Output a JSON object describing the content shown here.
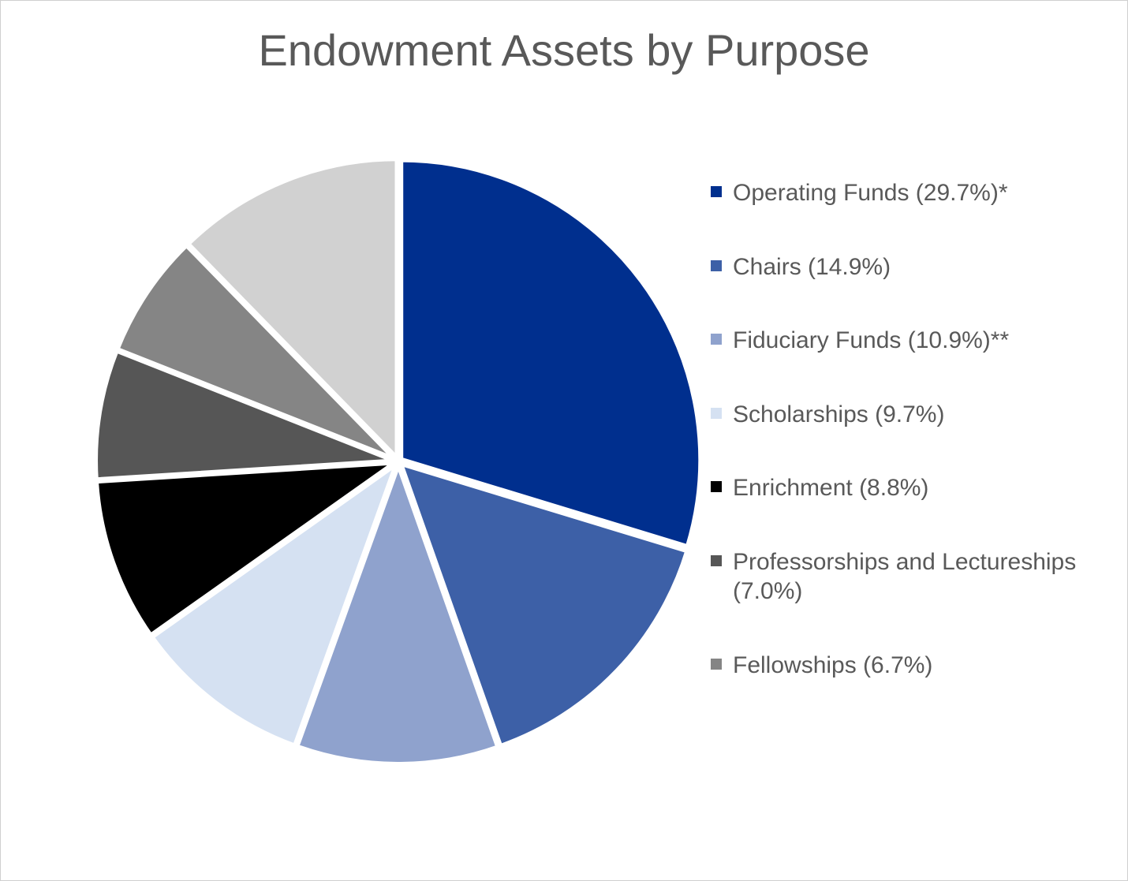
{
  "chart": {
    "type": "pie",
    "title": "Endowment Assets by Purpose",
    "title_fontsize": 56,
    "title_color": "#595959",
    "background_color": "#ffffff",
    "border_color": "#d0d0d0",
    "pie_radius": 380,
    "pie_stroke_color": "#ffffff",
    "pie_stroke_width": 6,
    "start_angle_deg": -90,
    "explode_gap": 4,
    "slices": [
      {
        "label": "Operating Funds (29.7%)*",
        "value": 29.7,
        "color": "#002f8e"
      },
      {
        "label": "Chairs (14.9%)",
        "value": 14.9,
        "color": "#3d60a7"
      },
      {
        "label": "Fiduciary Funds (10.9%)**",
        "value": 10.9,
        "color": "#8fa2cd"
      },
      {
        "label": "Scholarships (9.7%)",
        "value": 9.7,
        "color": "#d5e1f2"
      },
      {
        "label": "Enrichment (8.8%)",
        "value": 8.8,
        "color": "#000000"
      },
      {
        "label": "Professorships and Lectureships (7.0%)",
        "value": 7.0,
        "color": "#565656"
      },
      {
        "label": "Fellowships (6.7%)",
        "value": 6.7,
        "color": "#858585"
      },
      {
        "label": "",
        "value": 12.3,
        "color": "#d1d1d1"
      }
    ],
    "legend": {
      "fontsize": 30,
      "text_color": "#595959",
      "swatch_size": 14,
      "item_spacing": 56
    }
  }
}
